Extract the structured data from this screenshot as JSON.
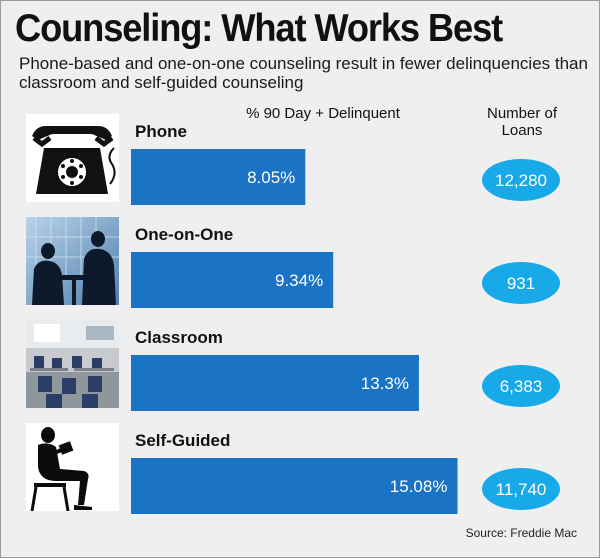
{
  "title": "Counseling: What Works Best",
  "subtitle": "Phone-based and one-on-one counseling result in fewer delinquencies than classroom and self-guided counseling",
  "column_headers": {
    "delinquent": "% 90 Day + Delinquent",
    "loans": "Number of Loans"
  },
  "source": "Source: Freddie Mac",
  "icons": [
    "rotary-phone-icon",
    "meeting-silhouette-icon",
    "classroom-photo-icon",
    "reading-person-silhouette-icon"
  ],
  "colors": {
    "bar": "#1a73c4",
    "oval": "#17a9e8",
    "background": "#efefef",
    "text_on_bar": "#ffffff"
  },
  "chart_data": {
    "type": "bar",
    "orientation": "horizontal",
    "title": "Counseling: What Works Best",
    "subtitle": "Phone-based and one-on-one counseling result in fewer delinquencies than classroom and self-guided counseling",
    "categories": [
      "Phone",
      "One-on-One",
      "Classroom",
      "Self-Guided"
    ],
    "series": [
      {
        "name": "% 90 Day + Delinquent",
        "values": [
          8.05,
          9.34,
          13.3,
          15.08
        ],
        "labels": [
          "8.05%",
          "9.34%",
          "13.3%",
          "15.08%"
        ]
      },
      {
        "name": "Number of Loans",
        "values": [
          12280,
          931,
          6383,
          11740
        ],
        "labels": [
          "12,280",
          "931",
          "6,383",
          "11,740"
        ]
      }
    ],
    "xlim": [
      0,
      16
    ],
    "grid": false,
    "legend": "none"
  }
}
